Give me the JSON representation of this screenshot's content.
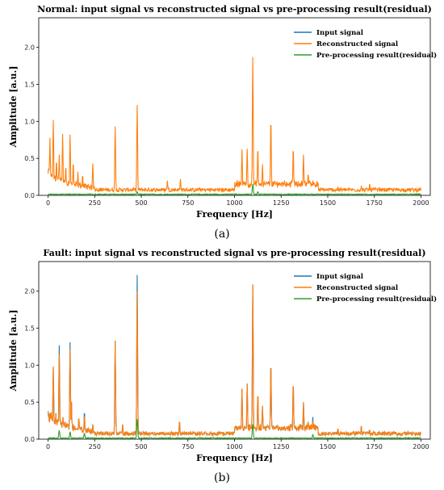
{
  "chart_data": [
    {
      "type": "line",
      "title": "Normal: input signal vs reconstructed signal vs pre-processing result(residual)",
      "xlabel": "Frequency [Hz]",
      "ylabel": "Amplitude [a.u.]",
      "xlim": [
        -50,
        2050
      ],
      "ylim": [
        0,
        2.4
      ],
      "xticks": [
        0,
        250,
        500,
        750,
        1000,
        1250,
        1500,
        1750,
        2000
      ],
      "yticks": [
        0.0,
        0.5,
        1.0,
        1.5,
        2.0
      ],
      "legend": "top-right",
      "grid": false,
      "series": [
        {
          "name": "Input signal",
          "color": "#1f77b4",
          "visible": false
        },
        {
          "name": "Reconstructed signal",
          "color": "#ff7f0e"
        },
        {
          "name": "Pre-processing result(residual)",
          "color": "#2ca02c"
        }
      ],
      "peaks": [
        {
          "x": 10,
          "y": 0.78
        },
        {
          "x": 28,
          "y": 1.02
        },
        {
          "x": 45,
          "y": 0.48
        },
        {
          "x": 60,
          "y": 0.55
        },
        {
          "x": 78,
          "y": 0.83
        },
        {
          "x": 95,
          "y": 0.4
        },
        {
          "x": 118,
          "y": 0.82
        },
        {
          "x": 135,
          "y": 0.45
        },
        {
          "x": 160,
          "y": 0.32
        },
        {
          "x": 185,
          "y": 0.28
        },
        {
          "x": 240,
          "y": 0.43
        },
        {
          "x": 360,
          "y": 0.93
        },
        {
          "x": 478,
          "y": 1.22
        },
        {
          "x": 640,
          "y": 0.2
        },
        {
          "x": 710,
          "y": 0.22
        },
        {
          "x": 1040,
          "y": 0.62
        },
        {
          "x": 1068,
          "y": 0.63
        },
        {
          "x": 1098,
          "y": 1.87
        },
        {
          "x": 1125,
          "y": 0.65
        },
        {
          "x": 1150,
          "y": 0.42
        },
        {
          "x": 1195,
          "y": 1.04
        },
        {
          "x": 1315,
          "y": 0.65
        },
        {
          "x": 1370,
          "y": 0.55
        },
        {
          "x": 1395,
          "y": 0.3
        },
        {
          "x": 1420,
          "y": 0.2
        },
        {
          "x": 1555,
          "y": 0.12
        },
        {
          "x": 1680,
          "y": 0.13
        },
        {
          "x": 1725,
          "y": 0.16
        }
      ],
      "residual_peaks": [
        {
          "x": 478,
          "y": 0.05
        },
        {
          "x": 1098,
          "y": 0.15
        },
        {
          "x": 1125,
          "y": 0.05
        }
      ]
    },
    {
      "type": "line",
      "title": "Fault: input signal vs reconstructed signal vs pre-processing result(residual)",
      "xlabel": "Frequency [Hz]",
      "ylabel": "Amplitude [a.u.]",
      "xlim": [
        -50,
        2050
      ],
      "ylim": [
        0,
        2.4
      ],
      "xticks": [
        0,
        250,
        500,
        750,
        1000,
        1250,
        1500,
        1750,
        2000
      ],
      "yticks": [
        0.0,
        0.5,
        1.0,
        1.5,
        2.0
      ],
      "legend": "top-right",
      "grid": false,
      "series": [
        {
          "name": "Input signal",
          "color": "#1f77b4"
        },
        {
          "name": "Reconstructed signal",
          "color": "#ff7f0e"
        },
        {
          "name": "Pre-processing result(residual)",
          "color": "#2ca02c"
        }
      ],
      "peaks": [
        {
          "x": 10,
          "y": 0.35
        },
        {
          "x": 28,
          "y": 0.98
        },
        {
          "x": 42,
          "y": 0.35
        },
        {
          "x": 60,
          "y": 1.15,
          "input": 1.27
        },
        {
          "x": 80,
          "y": 0.3
        },
        {
          "x": 118,
          "y": 1.22,
          "input": 1.31
        },
        {
          "x": 125,
          "y": 0.55
        },
        {
          "x": 165,
          "y": 0.3
        },
        {
          "x": 195,
          "y": 0.33,
          "input": 0.38
        },
        {
          "x": 240,
          "y": 0.2
        },
        {
          "x": 360,
          "y": 1.33
        },
        {
          "x": 400,
          "y": 0.2
        },
        {
          "x": 478,
          "y": 2.0,
          "input": 2.22
        },
        {
          "x": 705,
          "y": 0.25
        },
        {
          "x": 1040,
          "y": 0.68
        },
        {
          "x": 1068,
          "y": 0.75
        },
        {
          "x": 1098,
          "y": 2.09
        },
        {
          "x": 1125,
          "y": 0.63
        },
        {
          "x": 1150,
          "y": 0.45
        },
        {
          "x": 1195,
          "y": 1.05
        },
        {
          "x": 1315,
          "y": 0.78
        },
        {
          "x": 1370,
          "y": 0.5
        },
        {
          "x": 1395,
          "y": 0.25
        },
        {
          "x": 1420,
          "y": 0.25,
          "input": 0.3
        },
        {
          "x": 1555,
          "y": 0.15
        },
        {
          "x": 1680,
          "y": 0.18
        },
        {
          "x": 1725,
          "y": 0.13
        },
        {
          "x": 1930,
          "y": 0.1
        }
      ],
      "residual_peaks": [
        {
          "x": 60,
          "y": 0.12
        },
        {
          "x": 118,
          "y": 0.1
        },
        {
          "x": 195,
          "y": 0.08
        },
        {
          "x": 478,
          "y": 0.27
        },
        {
          "x": 1098,
          "y": 0.2
        },
        {
          "x": 1420,
          "y": 0.06
        }
      ]
    }
  ],
  "captions": [
    "(a)",
    "(b)"
  ]
}
